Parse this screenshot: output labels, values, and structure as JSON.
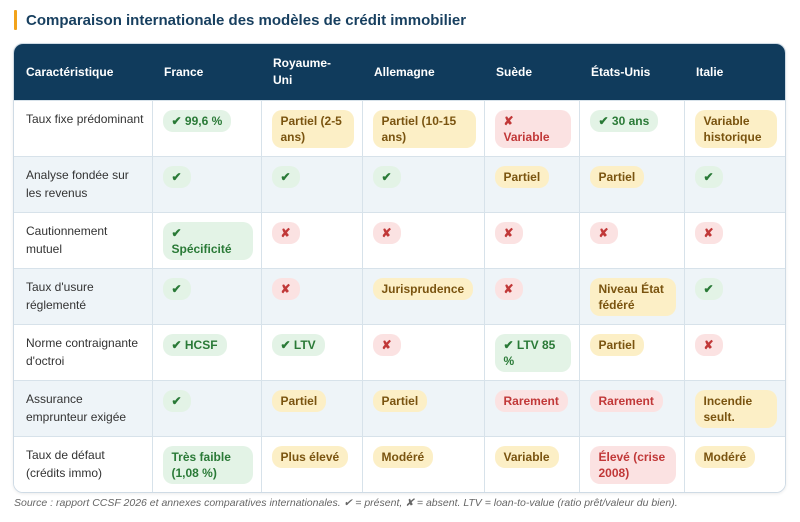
{
  "title": "Comparaison internationale des modèles de crédit immobilier",
  "table": {
    "headers": [
      "Caractéristique",
      "France",
      "Royaume-Uni",
      "Allemagne",
      "Suède",
      "États-Unis",
      "Italie"
    ],
    "rows": [
      {
        "label": "Taux fixe prédominant",
        "cells": [
          {
            "text": "✔ 99,6 %",
            "status": "green"
          },
          {
            "text": "Partiel (2-5 ans)",
            "status": "yellow"
          },
          {
            "text": "Partiel (10-15 ans)",
            "status": "yellow"
          },
          {
            "text": "✘ Variable",
            "status": "red"
          },
          {
            "text": "✔ 30 ans",
            "status": "green"
          },
          {
            "text": "Variable historique",
            "status": "yellow"
          }
        ]
      },
      {
        "label": "Analyse fondée sur les revenus",
        "cells": [
          {
            "text": "✔",
            "status": "green"
          },
          {
            "text": "✔",
            "status": "green"
          },
          {
            "text": "✔",
            "status": "green"
          },
          {
            "text": "Partiel",
            "status": "yellow"
          },
          {
            "text": "Partiel",
            "status": "yellow"
          },
          {
            "text": "✔",
            "status": "green"
          }
        ]
      },
      {
        "label": "Cautionnement mutuel",
        "cells": [
          {
            "text": "✔ Spécificité",
            "status": "green"
          },
          {
            "text": "✘",
            "status": "red"
          },
          {
            "text": "✘",
            "status": "red"
          },
          {
            "text": "✘",
            "status": "red"
          },
          {
            "text": "✘",
            "status": "red"
          },
          {
            "text": "✘",
            "status": "red"
          }
        ]
      },
      {
        "label": "Taux d'usure réglementé",
        "cells": [
          {
            "text": "✔",
            "status": "green"
          },
          {
            "text": "✘",
            "status": "red"
          },
          {
            "text": "Jurisprudence",
            "status": "yellow"
          },
          {
            "text": "✘",
            "status": "red"
          },
          {
            "text": "Niveau État fédéré",
            "status": "yellow"
          },
          {
            "text": "✔",
            "status": "green"
          }
        ]
      },
      {
        "label": "Norme contraignante d'octroi",
        "cells": [
          {
            "text": "✔ HCSF",
            "status": "green"
          },
          {
            "text": "✔ LTV",
            "status": "green"
          },
          {
            "text": "✘",
            "status": "red"
          },
          {
            "text": "✔ LTV 85 %",
            "status": "green"
          },
          {
            "text": "Partiel",
            "status": "yellow"
          },
          {
            "text": "✘",
            "status": "red"
          }
        ]
      },
      {
        "label": "Assurance emprunteur exigée",
        "cells": [
          {
            "text": "✔",
            "status": "green"
          },
          {
            "text": "Partiel",
            "status": "yellow"
          },
          {
            "text": "Partiel",
            "status": "yellow"
          },
          {
            "text": "Rarement",
            "status": "red"
          },
          {
            "text": "Rarement",
            "status": "red"
          },
          {
            "text": "Incendie seult.",
            "status": "yellow"
          }
        ]
      },
      {
        "label": "Taux de défaut (crédits immo)",
        "cells": [
          {
            "text": "Très faible (1,08 %)",
            "status": "green"
          },
          {
            "text": "Plus élevé",
            "status": "yellow"
          },
          {
            "text": "Modéré",
            "status": "yellow"
          },
          {
            "text": "Variable",
            "status": "yellow"
          },
          {
            "text": "Élevé (crise 2008)",
            "status": "red"
          },
          {
            "text": "Modéré",
            "status": "yellow"
          }
        ]
      }
    ]
  },
  "source": "Source : rapport CCSF 2026 et annexes comparatives internationales. ✔ = présent, ✘ = absent. LTV = loan-to-value (ratio prêt/valeur du bien).",
  "colors": {
    "header_bg": "#103b5c",
    "accent": "#f2a31b",
    "title": "#173f5f",
    "green_bg": "#e3f3e6",
    "green_text": "#2a7a37",
    "yellow_bg": "#fcefc6",
    "yellow_text": "#7a5410",
    "red_bg": "#fbe2e2",
    "red_text": "#c13838"
  }
}
